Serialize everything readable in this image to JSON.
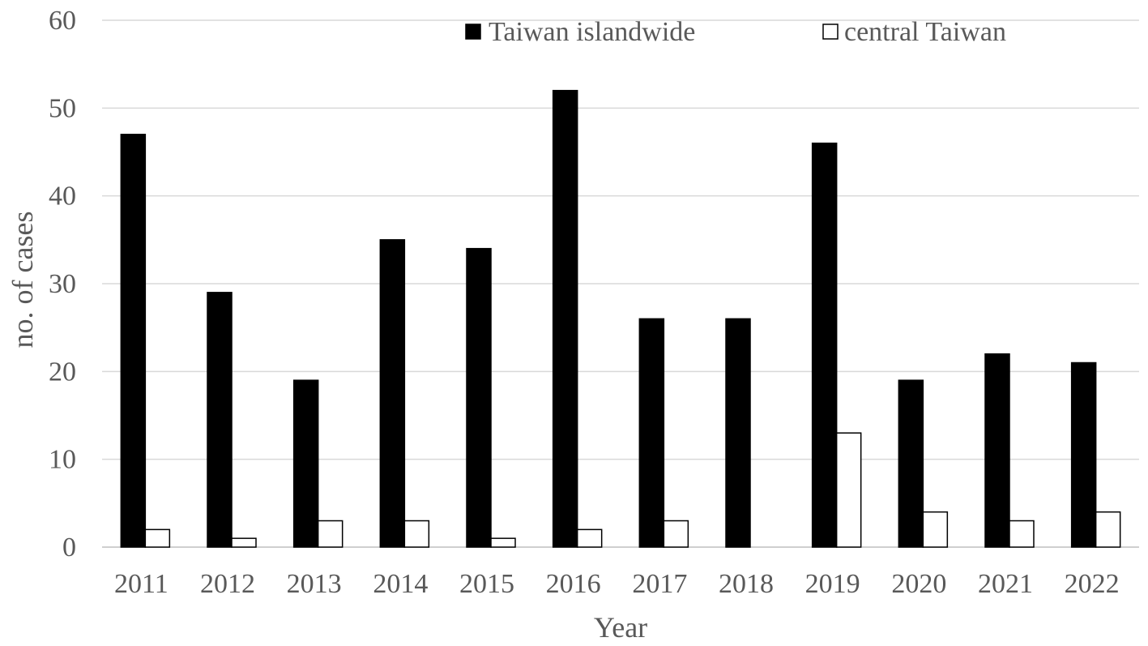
{
  "chart_data": {
    "type": "bar",
    "title": "",
    "xlabel": "Year",
    "ylabel": "no. of cases",
    "ylim": [
      0,
      60
    ],
    "yticks": [
      0,
      10,
      20,
      30,
      40,
      50,
      60
    ],
    "grid": true,
    "legend_position": "top-right",
    "categories": [
      "2011",
      "2012",
      "2013",
      "2014",
      "2015",
      "2016",
      "2017",
      "2018",
      "2019",
      "2020",
      "2021",
      "2022"
    ],
    "series": [
      {
        "name": "Taiwan islandwide",
        "values": [
          47,
          29,
          19,
          35,
          34,
          52,
          26,
          26,
          46,
          19,
          22,
          21
        ],
        "fill": "#000000",
        "stroke": "#000000"
      },
      {
        "name": "central Taiwan",
        "values": [
          2,
          1,
          3,
          3,
          1,
          2,
          3,
          0,
          13,
          4,
          3,
          4
        ],
        "fill": "#ffffff",
        "stroke": "#000000"
      }
    ]
  },
  "colors": {
    "axis_text": "#595959",
    "gridline": "#d9d9d9",
    "axis_line": "#bfbfbf"
  }
}
